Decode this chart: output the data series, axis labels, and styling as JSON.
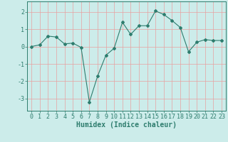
{
  "x": [
    0,
    1,
    2,
    3,
    4,
    5,
    6,
    7,
    8,
    9,
    10,
    11,
    12,
    13,
    14,
    15,
    16,
    17,
    18,
    19,
    20,
    21,
    22,
    23
  ],
  "y": [
    0.0,
    0.1,
    0.6,
    0.55,
    0.15,
    0.2,
    -0.05,
    -3.2,
    -1.7,
    -0.5,
    -0.1,
    1.4,
    0.7,
    1.2,
    1.2,
    2.05,
    1.85,
    1.5,
    1.1,
    -0.3,
    0.25,
    0.4,
    0.35,
    0.35
  ],
  "line_color": "#2e7d6e",
  "marker": "D",
  "marker_size": 2,
  "bg_color": "#ccecea",
  "grid_color": "#e8a0a0",
  "xlabel": "Humidex (Indice chaleur)",
  "xlabel_fontsize": 7,
  "yticks": [
    -3,
    -2,
    -1,
    0,
    1,
    2
  ],
  "xtick_labels": [
    "0",
    "1",
    "2",
    "3",
    "4",
    "5",
    "6",
    "7",
    "8",
    "9",
    "10",
    "11",
    "12",
    "13",
    "14",
    "15",
    "16",
    "17",
    "18",
    "19",
    "20",
    "21",
    "22",
    "23"
  ],
  "ylim": [
    -3.7,
    2.6
  ],
  "xlim": [
    -0.5,
    23.5
  ],
  "tick_fontsize": 6,
  "ylabel_fontsize": 6
}
